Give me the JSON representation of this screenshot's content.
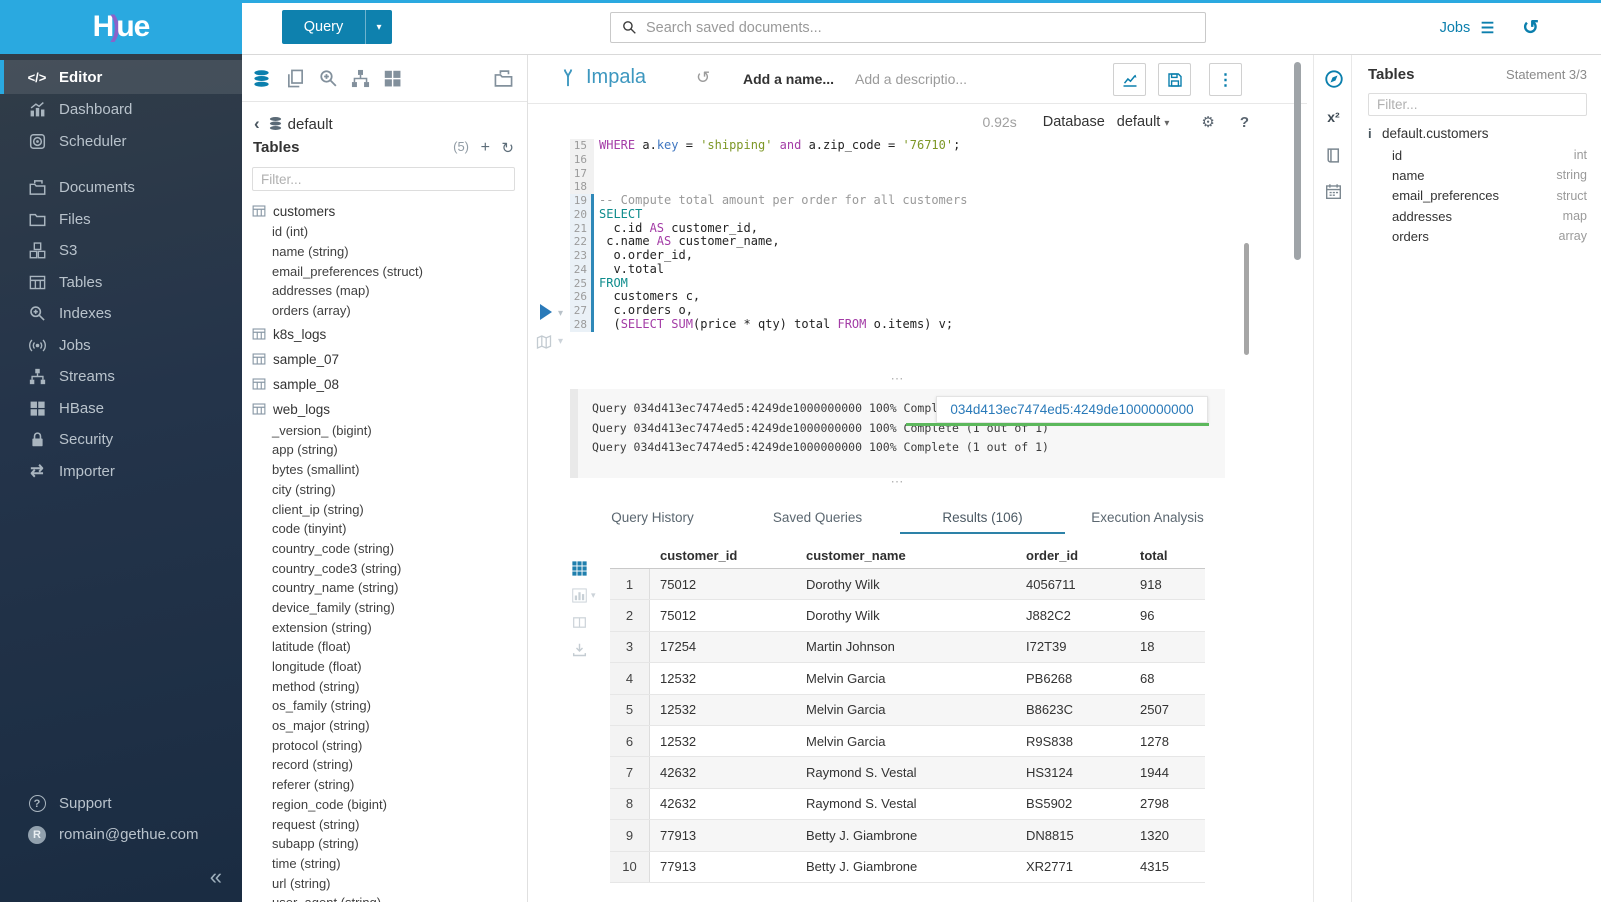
{
  "ui": {
    "resize_glyph": "⋯",
    "caret_down": "▾",
    "kebab": "⋮",
    "gear": "⚙",
    "help": "?",
    "history": "↺",
    "refresh": "↻",
    "plus": "+",
    "back_chevron": "‹",
    "collapse": "«"
  },
  "topbar": {
    "search_placeholder": "Search saved documents...",
    "jobs_label": "Jobs"
  },
  "sidebar": {
    "logo_parts": [
      {
        "t": "H",
        "c": "white"
      },
      {
        "t": ")",
        "c": "purple"
      },
      {
        "t": "ue",
        "c": "white"
      }
    ],
    "items": [
      {
        "label": "Editor",
        "icon": "code-icon",
        "active": true
      },
      {
        "label": "Dashboard",
        "icon": "dashboard-icon"
      },
      {
        "label": "Scheduler",
        "icon": "scheduler-icon",
        "gap_after": true
      },
      {
        "label": "Documents",
        "icon": "documents-icon"
      },
      {
        "label": "Files",
        "icon": "files-icon"
      },
      {
        "label": "S3",
        "icon": "s3-icon"
      },
      {
        "label": "Tables",
        "icon": "tables-icon"
      },
      {
        "label": "Indexes",
        "icon": "indexes-icon"
      },
      {
        "label": "Jobs",
        "icon": "jobs-icon"
      },
      {
        "label": "Streams",
        "icon": "streams-icon"
      },
      {
        "label": "HBase",
        "icon": "hbase-icon"
      },
      {
        "label": "Security",
        "icon": "security-icon"
      },
      {
        "label": "Importer",
        "icon": "importer-icon"
      }
    ],
    "footer": [
      {
        "label": "Support",
        "icon": "help-icon"
      },
      {
        "label": "romain@gethue.com",
        "icon": "avatar",
        "avatar_letter": "R"
      }
    ],
    "collapse_glyph": "«"
  },
  "assist_left": {
    "query_button_label": "Query",
    "database_breadcrumb": "default",
    "tables_header": "Tables",
    "tables_count": "(5)",
    "filter_placeholder": "Filter...",
    "tree": [
      {
        "name": "customers",
        "columns": [
          "id (int)",
          "name (string)",
          "email_preferences (struct)",
          "addresses (map)",
          "orders (array)"
        ]
      },
      {
        "name": "k8s_logs",
        "columns": []
      },
      {
        "name": "sample_07",
        "columns": []
      },
      {
        "name": "sample_08",
        "columns": []
      },
      {
        "name": "web_logs",
        "columns": [
          "_version_ (bigint)",
          "app (string)",
          "bytes (smallint)",
          "city (string)",
          "client_ip (string)",
          "code (tinyint)",
          "country_code (string)",
          "country_code3 (string)",
          "country_name (string)",
          "device_family (string)",
          "extension (string)",
          "latitude (float)",
          "longitude (float)",
          "method (string)",
          "os_family (string)",
          "os_major (string)",
          "protocol (string)",
          "record (string)",
          "referer (string)",
          "region_code (bigint)",
          "request (string)",
          "subapp (string)",
          "time (string)",
          "url (string)",
          "user_agent (string)"
        ]
      }
    ]
  },
  "editor": {
    "engine_name": "Impala",
    "name_placeholder": "Add a name...",
    "description_placeholder": "Add a descriptio...",
    "execution_time": "0.92s",
    "database_label": "Database",
    "database_value": "default",
    "lines": [
      {
        "n": 15,
        "active": false,
        "tokens": [
          [
            "WHERE",
            "p"
          ],
          [
            " a.",
            "x"
          ],
          [
            "key",
            "b"
          ],
          [
            " = ",
            "x"
          ],
          [
            "'shipping'",
            "s"
          ],
          [
            " ",
            "x"
          ],
          [
            "and",
            "p"
          ],
          [
            " a.zip_code = ",
            "x"
          ],
          [
            "'76710'",
            "s"
          ],
          [
            ";",
            "x"
          ]
        ]
      },
      {
        "n": 16,
        "active": false,
        "tokens": []
      },
      {
        "n": 17,
        "active": false,
        "tokens": []
      },
      {
        "n": 18,
        "active": false,
        "tokens": []
      },
      {
        "n": 19,
        "active": true,
        "tokens": [
          [
            "-- Compute total amount per order for all customers",
            "c"
          ]
        ]
      },
      {
        "n": 20,
        "active": true,
        "tokens": [
          [
            "SELECT",
            "t"
          ]
        ]
      },
      {
        "n": 21,
        "active": true,
        "tokens": [
          [
            "  c.id ",
            "x"
          ],
          [
            "AS",
            "p"
          ],
          [
            " customer_id,",
            "x"
          ]
        ]
      },
      {
        "n": 22,
        "active": true,
        "tokens": [
          [
            " c.name ",
            "x"
          ],
          [
            "AS",
            "p"
          ],
          [
            " customer_name,",
            "x"
          ]
        ]
      },
      {
        "n": 23,
        "active": true,
        "tokens": [
          [
            "  o.order_id,",
            "x"
          ]
        ]
      },
      {
        "n": 24,
        "active": true,
        "tokens": [
          [
            "  v.total",
            "x"
          ]
        ]
      },
      {
        "n": 25,
        "active": true,
        "tokens": [
          [
            "FROM",
            "t"
          ]
        ]
      },
      {
        "n": 26,
        "active": true,
        "tokens": [
          [
            "  customers c,",
            "x"
          ]
        ]
      },
      {
        "n": 27,
        "active": true,
        "tokens": [
          [
            "  c.orders o,",
            "x"
          ]
        ]
      },
      {
        "n": 28,
        "active": true,
        "tokens": [
          [
            "  (",
            "x"
          ],
          [
            "SELECT",
            "p"
          ],
          [
            " ",
            "x"
          ],
          [
            "SUM",
            "p"
          ],
          [
            "(price * qty) total ",
            "x"
          ],
          [
            "FROM",
            "p"
          ],
          [
            " o.items) v;",
            "x"
          ]
        ]
      }
    ]
  },
  "logs": {
    "lines": [
      "Query 034d413ec7474ed5:4249de1000000000 100% Complete (1 out of 1)",
      "Query 034d413ec7474ed5:4249de1000000000 100% Complete (1 out of 1)",
      "Query 034d413ec7474ed5:4249de1000000000 100% Complete (1 out of 1)"
    ],
    "tooltip_text": "034d413ec7474ed5:4249de1000000000"
  },
  "results": {
    "tabs": [
      {
        "label": "Query History",
        "active": false
      },
      {
        "label": "Saved Queries",
        "active": false
      },
      {
        "label": "Results (106)",
        "active": true
      },
      {
        "label": "Execution Analysis",
        "active": false
      }
    ],
    "columns": [
      "customer_id",
      "customer_name",
      "order_id",
      "total"
    ],
    "rows": [
      [
        "1",
        "75012",
        "Dorothy Wilk",
        "4056711",
        "918"
      ],
      [
        "2",
        "75012",
        "Dorothy Wilk",
        "J882C2",
        "96"
      ],
      [
        "3",
        "17254",
        "Martin Johnson",
        "I72T39",
        "18"
      ],
      [
        "4",
        "12532",
        "Melvin Garcia",
        "PB6268",
        "68"
      ],
      [
        "5",
        "12532",
        "Melvin Garcia",
        "B8623C",
        "2507"
      ],
      [
        "6",
        "12532",
        "Melvin Garcia",
        "R9S838",
        "1278"
      ],
      [
        "7",
        "42632",
        "Raymond S. Vestal",
        "HS3124",
        "1944"
      ],
      [
        "8",
        "42632",
        "Raymond S. Vestal",
        "BS5902",
        "2798"
      ],
      [
        "9",
        "77913",
        "Betty J. Giambrone",
        "DN8815",
        "1320"
      ],
      [
        "10",
        "77913",
        "Betty J. Giambrone",
        "XR2771",
        "4315"
      ]
    ]
  },
  "assist_right": {
    "title": "Tables",
    "statement_indicator": "Statement 3/3",
    "filter_placeholder": "Filter...",
    "table_name": "default.customers",
    "columns": [
      {
        "name": "id",
        "type": "int"
      },
      {
        "name": "name",
        "type": "string"
      },
      {
        "name": "email_preferences",
        "type": "struct"
      },
      {
        "name": "addresses",
        "type": "map"
      },
      {
        "name": "orders",
        "type": "array"
      }
    ]
  },
  "colors": {
    "brand": "#2aa9e0",
    "accent": "#0b7fad",
    "tab_underline": "#2d82a8",
    "green_underline": "#5cb85c"
  }
}
